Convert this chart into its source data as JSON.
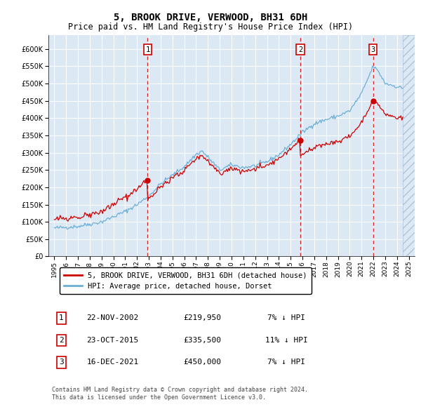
{
  "title": "5, BROOK DRIVE, VERWOOD, BH31 6DH",
  "subtitle": "Price paid vs. HM Land Registry's House Price Index (HPI)",
  "title_fontsize": 10,
  "subtitle_fontsize": 8.5,
  "ytick_values": [
    0,
    50000,
    100000,
    150000,
    200000,
    250000,
    300000,
    350000,
    400000,
    450000,
    500000,
    550000,
    600000
  ],
  "ylim": [
    0,
    640000
  ],
  "hpi_line_color": "#6baed6",
  "sale_line_color": "#cc0000",
  "plot_bg_color": "#dce9f5",
  "grid_color": "#ffffff",
  "sale_dashed_color": "#cc0000",
  "transactions": [
    {
      "label": "1",
      "year": 2002.9,
      "price": 219950,
      "date": "22-NOV-2002",
      "pct": "7%",
      "dir": "↓"
    },
    {
      "label": "2",
      "year": 2015.83,
      "price": 335500,
      "date": "23-OCT-2015",
      "pct": "11%",
      "dir": "↓"
    },
    {
      "label": "3",
      "year": 2021.97,
      "price": 450000,
      "date": "16-DEC-2021",
      "pct": "7%",
      "dir": "↓"
    }
  ],
  "legend_entries": [
    {
      "label": "5, BROOK DRIVE, VERWOOD, BH31 6DH (detached house)",
      "color": "#cc0000"
    },
    {
      "label": "HPI: Average price, detached house, Dorset",
      "color": "#6baed6"
    }
  ],
  "footer": "Contains HM Land Registry data © Crown copyright and database right 2024.\nThis data is licensed under the Open Government Licence v3.0.",
  "hatch_start_year": 2024.5,
  "xmin": 1994.5,
  "xmax": 2025.5
}
